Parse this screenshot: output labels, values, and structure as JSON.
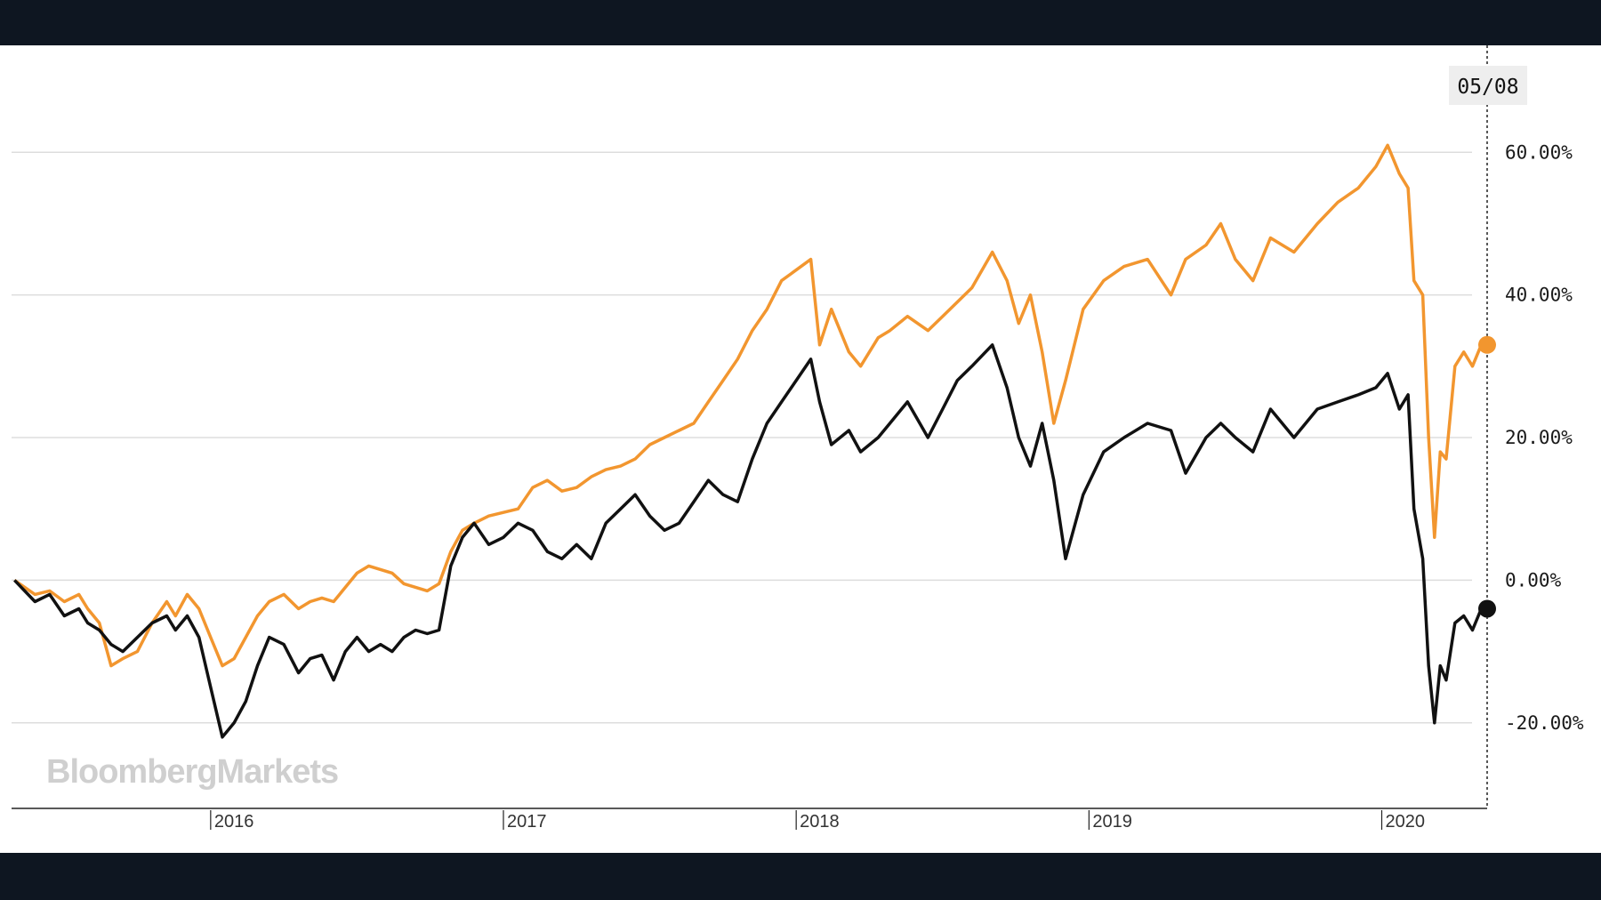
{
  "watermark": "BloombergMarkets",
  "crosshair": {
    "date_label": "05/08"
  },
  "colors": {
    "series_a": "#F2962F",
    "series_b": "#111111",
    "grid": "#dddddd",
    "axis": "#222222"
  },
  "chart_data": {
    "type": "line",
    "title": "",
    "xlabel": "",
    "ylabel": "",
    "xlim": [
      2015.32,
      2020.36
    ],
    "ylim": [
      -32,
      75
    ],
    "grid": true,
    "legend": "none",
    "y_ticks": [
      {
        "value": 60,
        "label": "60.00%"
      },
      {
        "value": 40,
        "label": "40.00%"
      },
      {
        "value": 20,
        "label": "20.00%"
      },
      {
        "value": 0,
        "label": "0.00%"
      },
      {
        "value": -20,
        "label": "-20.00%"
      }
    ],
    "x_ticks": [
      {
        "value": 2016,
        "label": "2016"
      },
      {
        "value": 2017,
        "label": "2017"
      },
      {
        "value": 2018,
        "label": "2018"
      },
      {
        "value": 2019,
        "label": "2019"
      },
      {
        "value": 2020,
        "label": "2020"
      }
    ],
    "series": [
      {
        "color": "#F2962F",
        "points": [
          [
            2015.33,
            0
          ],
          [
            2015.4,
            -2
          ],
          [
            2015.45,
            -1.5
          ],
          [
            2015.5,
            -3
          ],
          [
            2015.55,
            -2
          ],
          [
            2015.58,
            -4
          ],
          [
            2015.62,
            -6
          ],
          [
            2015.66,
            -12
          ],
          [
            2015.7,
            -11
          ],
          [
            2015.75,
            -10
          ],
          [
            2015.8,
            -6
          ],
          [
            2015.85,
            -3
          ],
          [
            2015.88,
            -5
          ],
          [
            2015.92,
            -2
          ],
          [
            2015.96,
            -4
          ],
          [
            2016.0,
            -8
          ],
          [
            2016.04,
            -12
          ],
          [
            2016.08,
            -11
          ],
          [
            2016.12,
            -8
          ],
          [
            2016.16,
            -5
          ],
          [
            2016.2,
            -3
          ],
          [
            2016.25,
            -2
          ],
          [
            2016.3,
            -4
          ],
          [
            2016.34,
            -3
          ],
          [
            2016.38,
            -2.5
          ],
          [
            2016.42,
            -3
          ],
          [
            2016.46,
            -1
          ],
          [
            2016.5,
            1
          ],
          [
            2016.54,
            2
          ],
          [
            2016.58,
            1.5
          ],
          [
            2016.62,
            1
          ],
          [
            2016.66,
            -0.5
          ],
          [
            2016.7,
            -1
          ],
          [
            2016.74,
            -1.5
          ],
          [
            2016.78,
            -0.5
          ],
          [
            2016.82,
            4
          ],
          [
            2016.86,
            7
          ],
          [
            2016.9,
            8
          ],
          [
            2016.95,
            9
          ],
          [
            2017.0,
            9.5
          ],
          [
            2017.05,
            10
          ],
          [
            2017.1,
            13
          ],
          [
            2017.15,
            14
          ],
          [
            2017.2,
            12.5
          ],
          [
            2017.25,
            13
          ],
          [
            2017.3,
            14.5
          ],
          [
            2017.35,
            15.5
          ],
          [
            2017.4,
            16
          ],
          [
            2017.45,
            17
          ],
          [
            2017.5,
            19
          ],
          [
            2017.55,
            20
          ],
          [
            2017.6,
            21
          ],
          [
            2017.65,
            22
          ],
          [
            2017.7,
            25
          ],
          [
            2017.75,
            28
          ],
          [
            2017.8,
            31
          ],
          [
            2017.85,
            35
          ],
          [
            2017.9,
            38
          ],
          [
            2017.95,
            42
          ],
          [
            2018.05,
            45
          ],
          [
            2018.08,
            33
          ],
          [
            2018.12,
            38
          ],
          [
            2018.18,
            32
          ],
          [
            2018.22,
            30
          ],
          [
            2018.28,
            34
          ],
          [
            2018.32,
            35
          ],
          [
            2018.38,
            37
          ],
          [
            2018.45,
            35
          ],
          [
            2018.5,
            37
          ],
          [
            2018.55,
            39
          ],
          [
            2018.6,
            41
          ],
          [
            2018.67,
            46
          ],
          [
            2018.72,
            42
          ],
          [
            2018.76,
            36
          ],
          [
            2018.8,
            40
          ],
          [
            2018.84,
            32
          ],
          [
            2018.88,
            22
          ],
          [
            2018.92,
            28
          ],
          [
            2018.98,
            38
          ],
          [
            2019.05,
            42
          ],
          [
            2019.12,
            44
          ],
          [
            2019.2,
            45
          ],
          [
            2019.28,
            40
          ],
          [
            2019.33,
            45
          ],
          [
            2019.4,
            47
          ],
          [
            2019.45,
            50
          ],
          [
            2019.5,
            45
          ],
          [
            2019.56,
            42
          ],
          [
            2019.62,
            48
          ],
          [
            2019.7,
            46
          ],
          [
            2019.78,
            50
          ],
          [
            2019.85,
            53
          ],
          [
            2019.92,
            55
          ],
          [
            2019.98,
            58
          ],
          [
            2020.02,
            61
          ],
          [
            2020.06,
            57
          ],
          [
            2020.09,
            55
          ],
          [
            2020.11,
            42
          ],
          [
            2020.14,
            40
          ],
          [
            2020.16,
            20
          ],
          [
            2020.18,
            6
          ],
          [
            2020.2,
            18
          ],
          [
            2020.22,
            17
          ],
          [
            2020.25,
            30
          ],
          [
            2020.28,
            32
          ],
          [
            2020.31,
            30
          ],
          [
            2020.34,
            33
          ]
        ]
      },
      {
        "color": "#111111",
        "points": [
          [
            2015.33,
            0
          ],
          [
            2015.4,
            -3
          ],
          [
            2015.45,
            -2
          ],
          [
            2015.5,
            -5
          ],
          [
            2015.55,
            -4
          ],
          [
            2015.58,
            -6
          ],
          [
            2015.62,
            -7
          ],
          [
            2015.66,
            -9
          ],
          [
            2015.7,
            -10
          ],
          [
            2015.75,
            -8
          ],
          [
            2015.8,
            -6
          ],
          [
            2015.85,
            -5
          ],
          [
            2015.88,
            -7
          ],
          [
            2015.92,
            -5
          ],
          [
            2015.96,
            -8
          ],
          [
            2016.0,
            -15
          ],
          [
            2016.04,
            -22
          ],
          [
            2016.08,
            -20
          ],
          [
            2016.12,
            -17
          ],
          [
            2016.16,
            -12
          ],
          [
            2016.2,
            -8
          ],
          [
            2016.25,
            -9
          ],
          [
            2016.3,
            -13
          ],
          [
            2016.34,
            -11
          ],
          [
            2016.38,
            -10.5
          ],
          [
            2016.42,
            -14
          ],
          [
            2016.46,
            -10
          ],
          [
            2016.5,
            -8
          ],
          [
            2016.54,
            -10
          ],
          [
            2016.58,
            -9
          ],
          [
            2016.62,
            -10
          ],
          [
            2016.66,
            -8
          ],
          [
            2016.7,
            -7
          ],
          [
            2016.74,
            -7.5
          ],
          [
            2016.78,
            -7
          ],
          [
            2016.82,
            2
          ],
          [
            2016.86,
            6
          ],
          [
            2016.9,
            8
          ],
          [
            2016.95,
            5
          ],
          [
            2017.0,
            6
          ],
          [
            2017.05,
            8
          ],
          [
            2017.1,
            7
          ],
          [
            2017.15,
            4
          ],
          [
            2017.2,
            3
          ],
          [
            2017.25,
            5
          ],
          [
            2017.3,
            3
          ],
          [
            2017.35,
            8
          ],
          [
            2017.4,
            10
          ],
          [
            2017.45,
            12
          ],
          [
            2017.5,
            9
          ],
          [
            2017.55,
            7
          ],
          [
            2017.6,
            8
          ],
          [
            2017.65,
            11
          ],
          [
            2017.7,
            14
          ],
          [
            2017.75,
            12
          ],
          [
            2017.8,
            11
          ],
          [
            2017.85,
            17
          ],
          [
            2017.9,
            22
          ],
          [
            2017.95,
            25
          ],
          [
            2018.05,
            31
          ],
          [
            2018.08,
            25
          ],
          [
            2018.12,
            19
          ],
          [
            2018.18,
            21
          ],
          [
            2018.22,
            18
          ],
          [
            2018.28,
            20
          ],
          [
            2018.32,
            22
          ],
          [
            2018.38,
            25
          ],
          [
            2018.45,
            20
          ],
          [
            2018.5,
            24
          ],
          [
            2018.55,
            28
          ],
          [
            2018.6,
            30
          ],
          [
            2018.67,
            33
          ],
          [
            2018.72,
            27
          ],
          [
            2018.76,
            20
          ],
          [
            2018.8,
            16
          ],
          [
            2018.84,
            22
          ],
          [
            2018.88,
            14
          ],
          [
            2018.92,
            3
          ],
          [
            2018.98,
            12
          ],
          [
            2019.05,
            18
          ],
          [
            2019.12,
            20
          ],
          [
            2019.2,
            22
          ],
          [
            2019.28,
            21
          ],
          [
            2019.33,
            15
          ],
          [
            2019.4,
            20
          ],
          [
            2019.45,
            22
          ],
          [
            2019.5,
            20
          ],
          [
            2019.56,
            18
          ],
          [
            2019.62,
            24
          ],
          [
            2019.7,
            20
          ],
          [
            2019.78,
            24
          ],
          [
            2019.85,
            25
          ],
          [
            2019.92,
            26
          ],
          [
            2019.98,
            27
          ],
          [
            2020.02,
            29
          ],
          [
            2020.06,
            24
          ],
          [
            2020.09,
            26
          ],
          [
            2020.11,
            10
          ],
          [
            2020.14,
            3
          ],
          [
            2020.16,
            -12
          ],
          [
            2020.18,
            -20
          ],
          [
            2020.2,
            -12
          ],
          [
            2020.22,
            -14
          ],
          [
            2020.25,
            -6
          ],
          [
            2020.28,
            -5
          ],
          [
            2020.31,
            -7
          ],
          [
            2020.34,
            -4
          ]
        ]
      }
    ],
    "end_markers": true
  }
}
